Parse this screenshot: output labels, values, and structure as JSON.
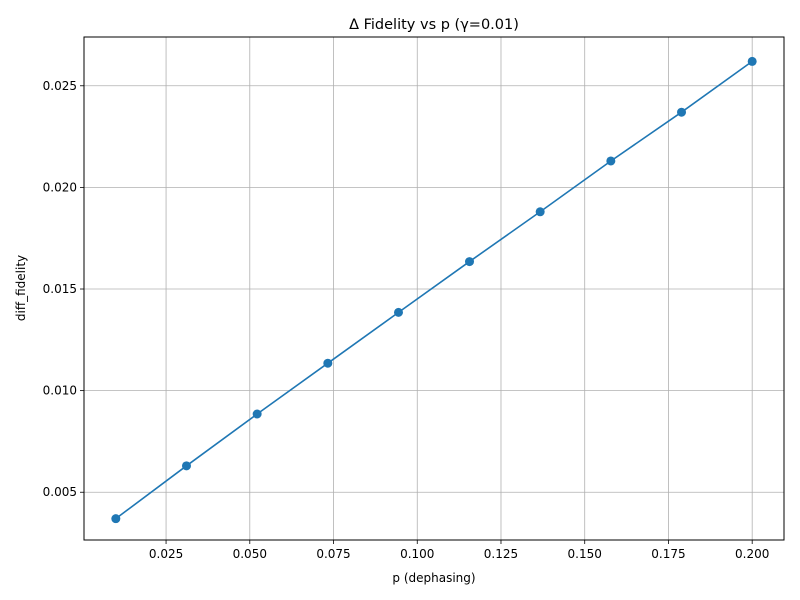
{
  "chart_data": {
    "type": "line",
    "title": "Δ Fidelity vs p (γ=0.01)",
    "xlabel": "p (dephasing)",
    "ylabel": "diff_fidelity",
    "xlim": [
      0.0005,
      0.2095
    ],
    "ylim": [
      0.00265,
      0.0274
    ],
    "grid": true,
    "x_ticks": [
      "0.025",
      "0.050",
      "0.075",
      "0.100",
      "0.125",
      "0.150",
      "0.175",
      "0.200"
    ],
    "y_ticks": [
      "0.005",
      "0.010",
      "0.015",
      "0.020",
      "0.025"
    ],
    "series": [
      {
        "color": "#1f77b4",
        "marker": "circle",
        "x": [
          0.01,
          0.0311,
          0.0522,
          0.0733,
          0.0944,
          0.1156,
          0.1367,
          0.1578,
          0.1789,
          0.2
        ],
        "y": [
          0.0037,
          0.0063,
          0.00885,
          0.01135,
          0.01385,
          0.01635,
          0.0188,
          0.0213,
          0.0237,
          0.0262
        ]
      }
    ]
  }
}
